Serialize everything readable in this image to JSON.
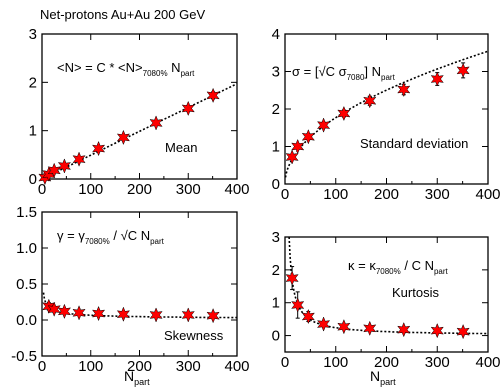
{
  "figure_title": "Net-protons Au+Au 200 GeV",
  "x_axis_label": "N",
  "x_axis_label_sub": "part",
  "chart_data": [
    {
      "type": "scatter",
      "label": "Mean",
      "formula": {
        "lhs": "<N> = C * <N>",
        "sub": "7080%",
        "rhs": " N",
        "rhs_sub": "part"
      },
      "xlim": [
        0,
        400
      ],
      "ylim": [
        0,
        3
      ],
      "xticks": [
        0,
        100,
        200,
        300,
        400
      ],
      "yticks": [
        0,
        1,
        2,
        3
      ],
      "x": [
        6,
        14,
        25,
        46,
        76,
        116,
        167,
        234,
        300,
        351
      ],
      "y": [
        0.03,
        0.1,
        0.18,
        0.27,
        0.41,
        0.63,
        0.86,
        1.16,
        1.46,
        1.73
      ],
      "err": [
        0.02,
        0.02,
        0.02,
        0.02,
        0.03,
        0.03,
        0.04,
        0.05,
        0.06,
        0.07
      ],
      "curve": {
        "kind": "linear",
        "scale": 0.00493
      },
      "grid": false
    },
    {
      "type": "scatter",
      "label": "Standard deviation",
      "formula": {
        "lhs": "σ = [√C σ",
        "sub": "7080",
        "rhs": "] N",
        "rhs_sub": "part"
      },
      "xlim": [
        0,
        400
      ],
      "ylim": [
        0,
        4
      ],
      "xticks": [
        0,
        100,
        200,
        300,
        400
      ],
      "yticks": [
        0,
        1,
        2,
        3,
        4
      ],
      "x": [
        14,
        25,
        46,
        76,
        116,
        167,
        234,
        300,
        351
      ],
      "y": [
        0.72,
        1.0,
        1.26,
        1.57,
        1.88,
        2.22,
        2.52,
        2.8,
        3.03
      ],
      "err": [
        0.06,
        0.07,
        0.08,
        0.08,
        0.09,
        0.12,
        0.14,
        0.17,
        0.2
      ],
      "curve": {
        "kind": "sqrt",
        "scale": 0.177
      },
      "grid": false
    },
    {
      "type": "scatter",
      "label": "Skewness",
      "formula": {
        "lhs": "γ = γ",
        "sub": "7080%",
        "rhs": "  /  √C N",
        "rhs_sub": "part"
      },
      "xlim": [
        0,
        400
      ],
      "ylim": [
        -0.5,
        1.5
      ],
      "xticks": [
        0,
        100,
        200,
        300,
        400
      ],
      "yticks": [
        -0.5,
        0.0,
        0.5,
        1.0,
        1.5
      ],
      "x": [
        14,
        25,
        46,
        76,
        116,
        167,
        234,
        300,
        351
      ],
      "y": [
        0.19,
        0.15,
        0.12,
        0.1,
        0.09,
        0.08,
        0.07,
        0.07,
        0.06
      ],
      "err": [
        0.05,
        0.04,
        0.03,
        0.03,
        0.03,
        0.02,
        0.02,
        0.02,
        0.02
      ],
      "curve": {
        "kind": "invsqrt",
        "scale": 0.66
      },
      "grid": false
    },
    {
      "type": "scatter",
      "label": "Kurtosis",
      "formula": {
        "lhs": "κ = κ",
        "sub": "7080%",
        "rhs": " /  C N",
        "rhs_sub": "part"
      },
      "xlim": [
        0,
        400
      ],
      "ylim": [
        -0.5,
        3
      ],
      "xticks": [
        0,
        100,
        200,
        300,
        400
      ],
      "yticks": [
        0,
        1,
        2,
        3
      ],
      "x": [
        14,
        25,
        46,
        76,
        116,
        167,
        234,
        300,
        351
      ],
      "y": [
        1.75,
        0.93,
        0.58,
        0.35,
        0.27,
        0.22,
        0.18,
        0.15,
        0.12
      ],
      "err": [
        0.35,
        0.4,
        0.15,
        0.08,
        0.06,
        0.05,
        0.05,
        0.05,
        0.05
      ],
      "curve": {
        "kind": "inv",
        "scale": 24.0
      },
      "grid": false
    }
  ]
}
